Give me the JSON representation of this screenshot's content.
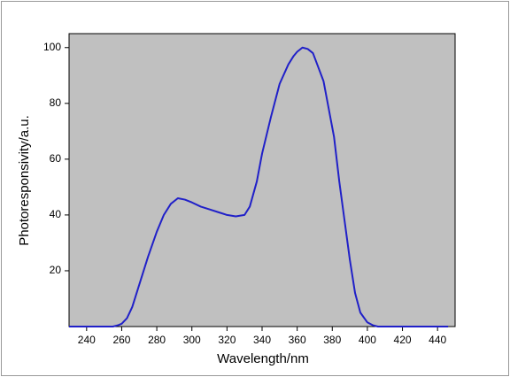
{
  "chart_data": {
    "type": "line",
    "xlabel": "Wavelength/nm",
    "ylabel": "Photoresponsivity/a.u.",
    "x": [
      230,
      240,
      250,
      255,
      258,
      260,
      263,
      266,
      270,
      275,
      280,
      284,
      288,
      292,
      296,
      300,
      305,
      310,
      315,
      320,
      325,
      330,
      333,
      337,
      340,
      345,
      350,
      355,
      358,
      360,
      363,
      366,
      369,
      372,
      375,
      378,
      381,
      384,
      387,
      390,
      393,
      396,
      400,
      403,
      406,
      410,
      420,
      430,
      440,
      446
    ],
    "series": [
      {
        "color": "#2020c8",
        "values": [
          0,
          0,
          0,
          0,
          0.5,
          1,
          3,
          7,
          15,
          25,
          34,
          40,
          44,
          46,
          45.5,
          44.5,
          43,
          42,
          41,
          40,
          39.5,
          40,
          43,
          52,
          62,
          75,
          87,
          94,
          97,
          98.5,
          100,
          99.5,
          98,
          93,
          88,
          78,
          68,
          52,
          38,
          24,
          12,
          5,
          1.5,
          0.5,
          0,
          0,
          0,
          0,
          0,
          0
        ]
      }
    ],
    "xlim": [
      230,
      450
    ],
    "ylim": [
      0,
      105
    ],
    "xticks": [
      240,
      260,
      280,
      300,
      320,
      340,
      360,
      380,
      400,
      420,
      440
    ],
    "yticks": [
      20,
      40,
      60,
      80,
      100
    ],
    "background": "#c0c0c0"
  }
}
